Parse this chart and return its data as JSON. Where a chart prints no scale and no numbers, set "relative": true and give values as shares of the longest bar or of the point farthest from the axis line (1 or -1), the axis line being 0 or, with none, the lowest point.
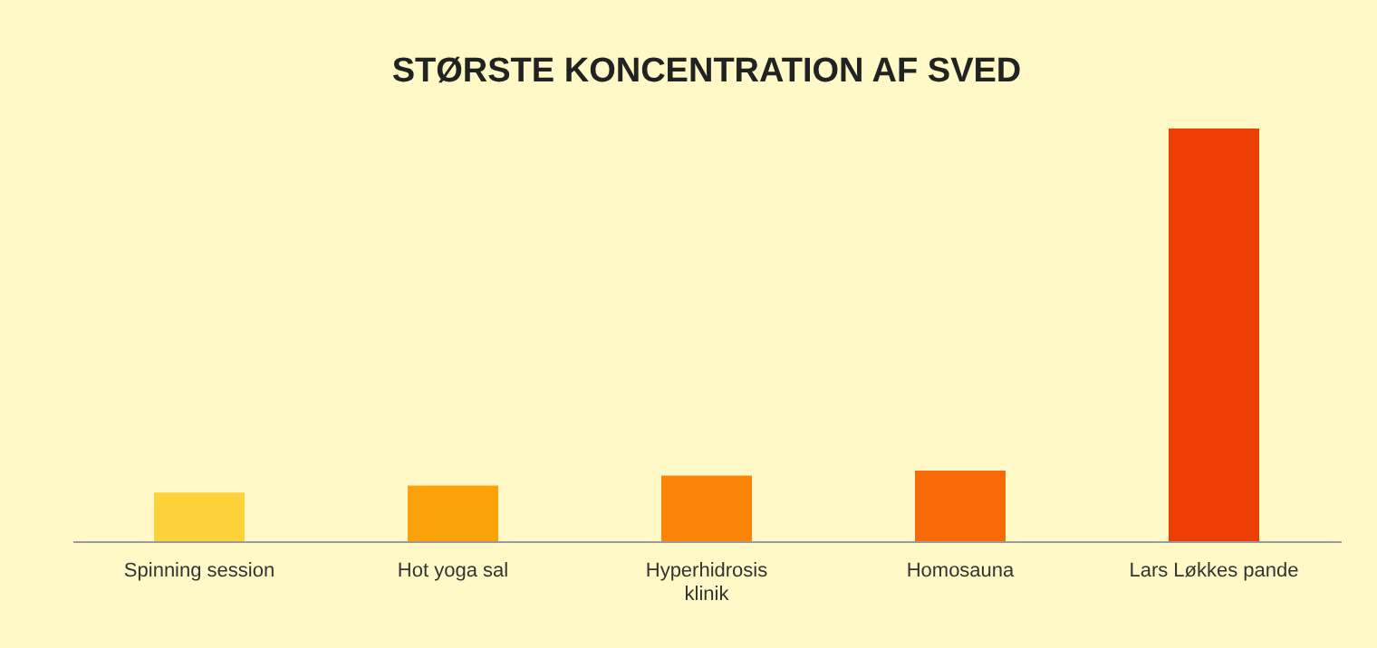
{
  "chart_data": {
    "type": "bar",
    "title": "STØRSTE KONCENTRATION AF SVED",
    "relative": true,
    "categories": [
      "Spinning session",
      "Hot yoga sal",
      "Hyperhidrosis\nklinik",
      "Homosauna",
      "Lars Løkkes pande"
    ],
    "values": [
      0.118,
      0.135,
      0.159,
      0.171,
      1
    ],
    "colors": [
      "#fdd13a",
      "#fba20a",
      "#fb8409",
      "#f86a07",
      "#ed3e04"
    ],
    "grid": false
  }
}
